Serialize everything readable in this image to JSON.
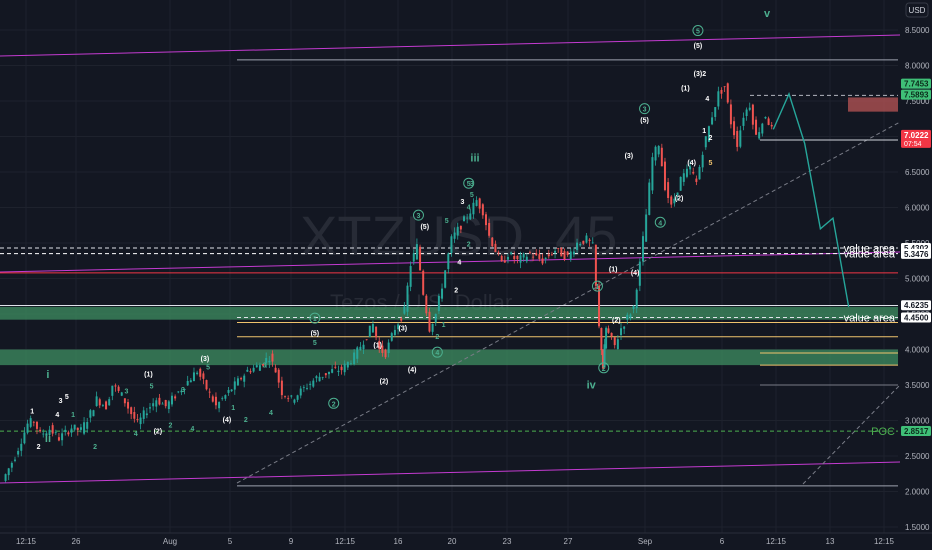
{
  "chart_data": {
    "type": "candlestick",
    "watermark": {
      "symbol": "XTZUSD",
      "interval": "45",
      "name": "Tezos / U.S. Dollar"
    },
    "currency": "USD",
    "y_axis": {
      "ylim": [
        1.5,
        8.8
      ],
      "ticks": [
        "8.5000",
        "8.0000",
        "7.5000",
        "7.0000",
        "6.5000",
        "6.0000",
        "5.5000",
        "5.0000",
        "4.5000",
        "4.0000",
        "3.5000",
        "3.0000",
        "2.5000",
        "2.0000",
        "1.5000"
      ]
    },
    "x_axis": {
      "ticks": [
        "12:15",
        "26",
        "Aug",
        "5",
        "9",
        "12:15",
        "16",
        "20",
        "23",
        "27",
        "Sep",
        "6",
        "12:15",
        "13",
        "12:15"
      ]
    },
    "price_path": [
      [
        0,
        2.15
      ],
      [
        0.4,
        2.5
      ],
      [
        0.8,
        2.95
      ],
      [
        1,
        3.0
      ],
      [
        1.2,
        2.8
      ],
      [
        1.5,
        2.88
      ],
      [
        1.8,
        2.75
      ],
      [
        2.2,
        2.9
      ],
      [
        2.5,
        2.86
      ],
      [
        2.8,
        3.1
      ],
      [
        3.0,
        3.3
      ],
      [
        3.3,
        3.2
      ],
      [
        3.5,
        3.5
      ],
      [
        3.8,
        3.35
      ],
      [
        4.1,
        3.1
      ],
      [
        4.3,
        2.95
      ],
      [
        4.6,
        3.15
      ],
      [
        4.9,
        3.3
      ],
      [
        5.2,
        3.2
      ],
      [
        5.5,
        3.35
      ],
      [
        5.9,
        3.55
      ],
      [
        6.2,
        3.7
      ],
      [
        6.5,
        3.45
      ],
      [
        6.8,
        3.2
      ],
      [
        7.1,
        3.35
      ],
      [
        7.5,
        3.55
      ],
      [
        7.8,
        3.7
      ],
      [
        8.2,
        3.78
      ],
      [
        8.5,
        3.9
      ],
      [
        8.7,
        3.7
      ],
      [
        8.9,
        3.4
      ],
      [
        9.2,
        3.3
      ],
      [
        9.6,
        3.45
      ],
      [
        10.0,
        3.6
      ],
      [
        10.5,
        3.7
      ],
      [
        10.8,
        3.72
      ],
      [
        11.2,
        3.9
      ],
      [
        11.6,
        4.2
      ],
      [
        11.8,
        4.35
      ],
      [
        12.0,
        4.0
      ],
      [
        12.2,
        3.95
      ],
      [
        12.5,
        4.3
      ],
      [
        12.8,
        4.55
      ],
      [
        13.0,
        5.2
      ],
      [
        13.2,
        5.45
      ],
      [
        13.4,
        4.8
      ],
      [
        13.6,
        4.3
      ],
      [
        13.8,
        4.5
      ],
      [
        14.0,
        4.9
      ],
      [
        14.3,
        5.55
      ],
      [
        14.6,
        5.75
      ],
      [
        14.9,
        5.95
      ],
      [
        15.1,
        6.1
      ],
      [
        15.3,
        5.95
      ],
      [
        15.5,
        5.6
      ],
      [
        15.7,
        5.4
      ],
      [
        15.9,
        5.2
      ],
      [
        16.1,
        5.35
      ],
      [
        16.4,
        5.25
      ],
      [
        16.8,
        5.35
      ],
      [
        17.2,
        5.25
      ],
      [
        17.6,
        5.4
      ],
      [
        18.0,
        5.3
      ],
      [
        18.3,
        5.5
      ],
      [
        18.6,
        5.55
      ],
      [
        18.8,
        5.45
      ],
      [
        19.0,
        4.3
      ],
      [
        19.1,
        3.75
      ],
      [
        19.2,
        4.3
      ],
      [
        19.5,
        4.05
      ],
      [
        19.7,
        4.3
      ],
      [
        19.9,
        4.45
      ],
      [
        20.1,
        4.6
      ],
      [
        20.3,
        5.2
      ],
      [
        20.5,
        5.9
      ],
      [
        20.7,
        6.7
      ],
      [
        20.9,
        6.9
      ],
      [
        21.1,
        6.3
      ],
      [
        21.3,
        6.0
      ],
      [
        21.6,
        6.4
      ],
      [
        21.9,
        6.55
      ],
      [
        22.1,
        6.35
      ],
      [
        22.3,
        6.8
      ],
      [
        22.6,
        7.3
      ],
      [
        22.8,
        7.6
      ],
      [
        23.0,
        7.7
      ],
      [
        23.2,
        7.2
      ],
      [
        23.4,
        6.9
      ],
      [
        23.6,
        7.3
      ],
      [
        23.8,
        7.45
      ],
      [
        24.0,
        7.0
      ],
      [
        24.3,
        7.3
      ],
      [
        24.5,
        7.1
      ]
    ],
    "forecast_path": [
      [
        24.5,
        7.1
      ],
      [
        25.0,
        7.6
      ],
      [
        25.5,
        6.9
      ],
      [
        26.0,
        5.7
      ],
      [
        26.4,
        5.85
      ],
      [
        26.9,
        4.6
      ]
    ],
    "horizontal_levels": [
      {
        "price": 8.08,
        "color": "#9ea3b0",
        "style": "solid",
        "label": ""
      },
      {
        "price": 7.58,
        "color": "#b2b5be",
        "style": "dashed",
        "label": ""
      },
      {
        "price": 6.95,
        "color": "#d1d4dc",
        "style": "solid",
        "label": ""
      },
      {
        "price": 5.43,
        "color": "#e0e3eb",
        "style": "dashed",
        "label": "value area"
      },
      {
        "price": 5.35,
        "color": "#ffffff",
        "style": "dashed",
        "label": "value area"
      },
      {
        "price": 5.08,
        "color": "#f23645",
        "style": "solid",
        "label": ""
      },
      {
        "price": 4.62,
        "color": "#e0e3eb",
        "style": "solid",
        "label": ""
      },
      {
        "price": 4.45,
        "color": "#e0e3eb",
        "style": "dashed",
        "label": "value area"
      },
      {
        "price": 4.38,
        "color": "#f0c36d",
        "style": "solid",
        "label": ""
      },
      {
        "price": 4.18,
        "color": "#f0c36d",
        "style": "solid",
        "label": ""
      },
      {
        "price": 3.95,
        "color": "#f0c36d",
        "style": "solid",
        "label": ""
      },
      {
        "price": 3.78,
        "color": "#f0c36d",
        "style": "solid",
        "label": ""
      },
      {
        "price": 3.5,
        "color": "#787b86",
        "style": "solid",
        "label": ""
      },
      {
        "price": 2.85,
        "color": "#4caf50",
        "style": "dashed",
        "label": "POC"
      },
      {
        "price": 2.08,
        "color": "#9ea3b0",
        "style": "solid",
        "label": ""
      }
    ],
    "zones": [
      {
        "low": 4.42,
        "high": 4.6,
        "color": "#3f8f62"
      },
      {
        "low": 3.78,
        "high": 4.0,
        "color": "#3f8f62"
      },
      {
        "low": 7.35,
        "high": 7.55,
        "color": "#b95555"
      }
    ],
    "wave_labels": [
      {
        "t": 1.4,
        "p": 3.6,
        "text": "i",
        "color": "#4caf8f"
      },
      {
        "t": 1.4,
        "p": 2.7,
        "text": "ii",
        "color": "#4caf8f"
      },
      {
        "t": 15.0,
        "p": 6.65,
        "text": "iii",
        "color": "#4caf8f"
      },
      {
        "t": 18.7,
        "p": 3.45,
        "text": "iv",
        "color": "#4caf8f"
      },
      {
        "t": 24.3,
        "p": 8.68,
        "text": "v",
        "color": "#4caf8f"
      },
      {
        "t": 0.9,
        "p": 3.1,
        "text": "1",
        "color": "#ffffff"
      },
      {
        "t": 1.1,
        "p": 2.6,
        "text": "2",
        "color": "#ffffff"
      },
      {
        "t": 1.7,
        "p": 3.05,
        "text": "4",
        "color": "#ffffff"
      },
      {
        "t": 1.8,
        "p": 3.25,
        "text": "3",
        "color": "#ffffff"
      },
      {
        "t": 2.0,
        "p": 3.3,
        "text": "5",
        "color": "#ffffff"
      },
      {
        "t": 2.2,
        "p": 3.05,
        "text": "1",
        "color": "#4caf8f"
      },
      {
        "t": 2.9,
        "p": 2.6,
        "text": "2",
        "color": "#4caf8f"
      },
      {
        "t": 3.9,
        "p": 3.38,
        "text": "3",
        "color": "#4caf8f"
      },
      {
        "t": 4.2,
        "p": 2.78,
        "text": "4",
        "color": "#4caf8f"
      },
      {
        "t": 4.6,
        "p": 3.62,
        "text": "(1)",
        "color": "#ffffff"
      },
      {
        "t": 4.7,
        "p": 3.45,
        "text": "5",
        "color": "#4caf8f"
      },
      {
        "t": 4.9,
        "p": 2.82,
        "text": "(2)",
        "color": "#ffffff"
      },
      {
        "t": 5.3,
        "p": 2.9,
        "text": "2",
        "color": "#4caf8f"
      },
      {
        "t": 5.7,
        "p": 3.4,
        "text": "3",
        "color": "#4caf8f"
      },
      {
        "t": 6.0,
        "p": 2.85,
        "text": "4",
        "color": "#4caf8f"
      },
      {
        "t": 6.4,
        "p": 3.84,
        "text": "(3)",
        "color": "#ffffff"
      },
      {
        "t": 6.5,
        "p": 3.72,
        "text": "5",
        "color": "#4caf8f"
      },
      {
        "t": 7.1,
        "p": 2.98,
        "text": "(4)",
        "color": "#ffffff"
      },
      {
        "t": 7.3,
        "p": 3.15,
        "text": "1",
        "color": "#4caf8f"
      },
      {
        "t": 7.7,
        "p": 2.98,
        "text": "2",
        "color": "#4caf8f"
      },
      {
        "t": 8.3,
        "p": 3.75,
        "text": "3",
        "color": "#4caf8f"
      },
      {
        "t": 8.5,
        "p": 3.08,
        "text": "4",
        "color": "#4caf8f"
      },
      {
        "t": 9.9,
        "p": 4.4,
        "text": "1",
        "color": "#4caf8f",
        "circled": true
      },
      {
        "t": 9.9,
        "p": 4.2,
        "text": "(5)",
        "color": "#ffffff"
      },
      {
        "t": 9.9,
        "p": 4.06,
        "text": "5",
        "color": "#4caf8f"
      },
      {
        "t": 10.5,
        "p": 3.2,
        "text": "2",
        "color": "#4caf8f",
        "circled": true
      },
      {
        "t": 11.9,
        "p": 4.03,
        "text": "(1)",
        "color": "#ffffff"
      },
      {
        "t": 12.1,
        "p": 3.52,
        "text": "(2)",
        "color": "#ffffff"
      },
      {
        "t": 12.7,
        "p": 4.27,
        "text": "(3)",
        "color": "#ffffff"
      },
      {
        "t": 13.0,
        "p": 3.68,
        "text": "(4)",
        "color": "#ffffff"
      },
      {
        "t": 13.2,
        "p": 5.85,
        "text": "3",
        "color": "#4caf8f",
        "circled": true
      },
      {
        "t": 13.4,
        "p": 5.7,
        "text": "(5)",
        "color": "#ffffff"
      },
      {
        "t": 13.8,
        "p": 3.92,
        "text": "4",
        "color": "#4caf8f",
        "circled": true
      },
      {
        "t": 13.8,
        "p": 4.15,
        "text": "2",
        "color": "#4caf8f"
      },
      {
        "t": 14.0,
        "p": 4.32,
        "text": "1",
        "color": "#4caf8f"
      },
      {
        "t": 14.1,
        "p": 5.78,
        "text": "5",
        "color": "#4caf8f"
      },
      {
        "t": 14.4,
        "p": 4.8,
        "text": "2",
        "color": "#ffffff"
      },
      {
        "t": 14.5,
        "p": 5.2,
        "text": "4",
        "color": "#ffffff"
      },
      {
        "t": 14.6,
        "p": 6.05,
        "text": "3",
        "color": "#ffffff"
      },
      {
        "t": 14.8,
        "p": 5.45,
        "text": "2",
        "color": "#4caf8f"
      },
      {
        "t": 14.8,
        "p": 5.97,
        "text": "4",
        "color": "#4caf8f"
      },
      {
        "t": 14.8,
        "p": 6.3,
        "text": "5",
        "color": "#4caf8f",
        "circled": true
      },
      {
        "t": 14.9,
        "p": 6.15,
        "text": "5",
        "color": "#4caf8f"
      },
      {
        "t": 14.9,
        "p": 6.3,
        "text": "3",
        "color": "#4caf8f"
      },
      {
        "t": 18.9,
        "p": 4.85,
        "text": "1",
        "color": "#4caf8f",
        "circled": true
      },
      {
        "t": 19.1,
        "p": 3.7,
        "text": "2",
        "color": "#4caf8f",
        "circled": true
      },
      {
        "t": 19.4,
        "p": 5.1,
        "text": "(1)",
        "color": "#ffffff"
      },
      {
        "t": 19.5,
        "p": 4.38,
        "text": "(2)",
        "color": "#ffffff"
      },
      {
        "t": 19.9,
        "p": 6.7,
        "text": "(3)",
        "color": "#ffffff"
      },
      {
        "t": 20.1,
        "p": 5.05,
        "text": "(4)",
        "color": "#ffffff"
      },
      {
        "t": 20.4,
        "p": 7.35,
        "text": "3",
        "color": "#4caf8f",
        "circled": true
      },
      {
        "t": 20.4,
        "p": 7.2,
        "text": "(5)",
        "color": "#ffffff"
      },
      {
        "t": 20.9,
        "p": 5.75,
        "text": "4",
        "color": "#4caf8f",
        "circled": true
      },
      {
        "t": 21.5,
        "p": 6.1,
        "text": "(2)",
        "color": "#ffffff"
      },
      {
        "t": 21.9,
        "p": 6.6,
        "text": "(4)",
        "color": "#ffffff"
      },
      {
        "t": 21.7,
        "p": 7.65,
        "text": "(1)",
        "color": "#ffffff"
      },
      {
        "t": 22.1,
        "p": 7.85,
        "text": "(3)",
        "color": "#ffffff"
      },
      {
        "t": 22.3,
        "p": 7.85,
        "text": "2",
        "color": "#ffffff"
      },
      {
        "t": 22.1,
        "p": 8.25,
        "text": "(5)",
        "color": "#ffffff"
      },
      {
        "t": 22.1,
        "p": 8.45,
        "text": "5",
        "color": "#4caf8f",
        "circled": true
      },
      {
        "t": 22.3,
        "p": 7.05,
        "text": "1",
        "color": "#ffffff"
      },
      {
        "t": 22.5,
        "p": 6.95,
        "text": "2",
        "color": "#ffffff"
      },
      {
        "t": 22.4,
        "p": 7.5,
        "text": "4",
        "color": "#ffffff"
      },
      {
        "t": 22.5,
        "p": 6.6,
        "text": "5",
        "color": "#f0c36d"
      }
    ],
    "price_labels": [
      {
        "price": 7.7453,
        "text": "7.7453",
        "bg": "#3fbf77",
        "fg": "#0b2b1b"
      },
      {
        "price": 7.5893,
        "text": "7.5893",
        "bg": "#3fbf77",
        "fg": "#0b2b1b"
      },
      {
        "price": 7.0222,
        "text": "7.0222",
        "bg": "#f23645",
        "fg": "#ffffff",
        "sub": "07:54"
      },
      {
        "price": 5.4302,
        "text": "5.4302",
        "bg": "#ffffff",
        "fg": "#131722"
      },
      {
        "price": 5.3476,
        "text": "5.3476",
        "bg": "#ffffff",
        "fg": "#131722"
      },
      {
        "price": 4.6235,
        "text": "4.6235",
        "bg": "#ffffff",
        "fg": "#131722"
      },
      {
        "price": 4.45,
        "text": "4.4500",
        "bg": "#ffffff",
        "fg": "#131722"
      },
      {
        "price": 2.8517,
        "text": "2.8517",
        "bg": "#3fbf77",
        "fg": "#0b2b1b"
      }
    ]
  }
}
